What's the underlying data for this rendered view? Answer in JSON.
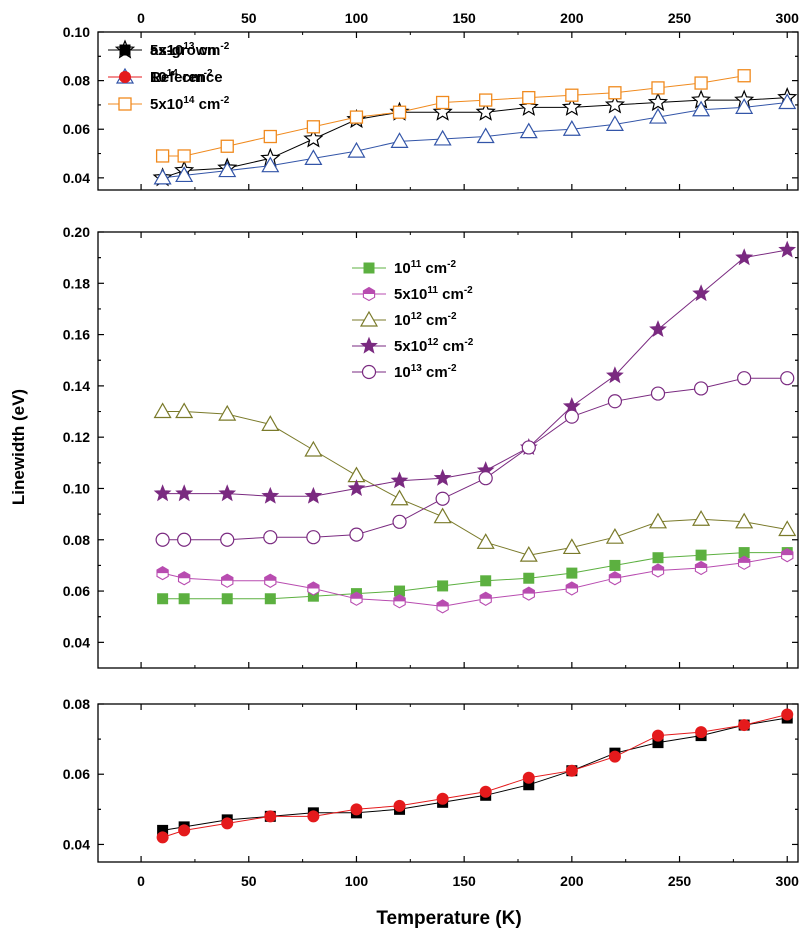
{
  "figure": {
    "xlabel": "Temperature (K)",
    "ylabel": "Linewidth (eV)"
  },
  "colors": {
    "black": "#000000",
    "blue": "#3355a8",
    "orange": "#f08a1e",
    "green": "#5cb040",
    "magenta": "#b84cb0",
    "olive": "#7a7a2a",
    "purple": "#7a2a80",
    "red": "#e41a1c"
  },
  "chart_data": [
    {
      "type": "line",
      "panel": "top",
      "xlim": [
        -20,
        305
      ],
      "ylim": [
        0.035,
        0.1
      ],
      "xticks": [
        0,
        50,
        100,
        150,
        200,
        250,
        300
      ],
      "yticks": [
        0.04,
        0.06,
        0.08,
        0.1
      ],
      "ytick_labels": [
        "0.04",
        "0.06",
        "0.08",
        "0.10"
      ],
      "show_xtick_labels": "top",
      "legend_position": "top-left",
      "series": [
        {
          "name": "5x10^13 cm^-2",
          "label_parts": [
            "5x10",
            "13",
            " cm",
            "-2"
          ],
          "marker": "star-open",
          "color": "black",
          "x": [
            10,
            20,
            40,
            60,
            80,
            100,
            120,
            140,
            160,
            180,
            200,
            220,
            240,
            260,
            280,
            300
          ],
          "y": [
            0.04,
            0.043,
            0.044,
            0.048,
            0.056,
            0.064,
            0.067,
            0.067,
            0.067,
            0.069,
            0.069,
            0.07,
            0.071,
            0.072,
            0.072,
            0.073
          ]
        },
        {
          "name": "10^14 cm^-2",
          "label_parts": [
            "10",
            "14",
            " cm",
            "-2"
          ],
          "marker": "triangle-open",
          "color": "blue",
          "x": [
            10,
            20,
            40,
            60,
            80,
            100,
            120,
            140,
            160,
            180,
            200,
            220,
            240,
            260,
            280,
            300
          ],
          "y": [
            0.04,
            0.041,
            0.043,
            0.045,
            0.048,
            0.051,
            0.055,
            0.056,
            0.057,
            0.059,
            0.06,
            0.062,
            0.065,
            0.068,
            0.069,
            0.071
          ]
        },
        {
          "name": "5x10^14 cm^-2",
          "label_parts": [
            "5x10",
            "14",
            " cm",
            "-2"
          ],
          "marker": "square-open",
          "color": "orange",
          "x": [
            10,
            20,
            40,
            60,
            80,
            100,
            120,
            140,
            160,
            180,
            200,
            220,
            240,
            260,
            280
          ],
          "y": [
            0.049,
            0.049,
            0.053,
            0.057,
            0.061,
            0.065,
            0.067,
            0.071,
            0.072,
            0.073,
            0.074,
            0.075,
            0.077,
            0.079,
            0.082
          ]
        }
      ]
    },
    {
      "type": "line",
      "panel": "middle",
      "xlim": [
        -20,
        305
      ],
      "ylim": [
        0.03,
        0.2
      ],
      "xticks": [
        0,
        50,
        100,
        150,
        200,
        250,
        300
      ],
      "yticks": [
        0.04,
        0.06,
        0.08,
        0.1,
        0.12,
        0.14,
        0.16,
        0.18,
        0.2
      ],
      "ytick_labels": [
        "0.04",
        "0.06",
        "0.08",
        "0.10",
        "0.12",
        "0.14",
        "0.16",
        "0.18",
        "0.20"
      ],
      "show_xtick_labels": "none",
      "legend_position": "top-center",
      "series": [
        {
          "name": "10^11 cm^-2",
          "label_parts": [
            "10",
            "11",
            " cm",
            "-2"
          ],
          "marker": "square-filled",
          "color": "green",
          "x": [
            10,
            20,
            40,
            60,
            80,
            100,
            120,
            140,
            160,
            180,
            200,
            220,
            240,
            260,
            280,
            300
          ],
          "y": [
            0.057,
            0.057,
            0.057,
            0.057,
            0.058,
            0.059,
            0.06,
            0.062,
            0.064,
            0.065,
            0.067,
            0.07,
            0.073,
            0.074,
            0.075,
            0.075
          ]
        },
        {
          "name": "5x10^11 cm^-2",
          "label_parts": [
            "5x10",
            "11",
            " cm",
            "-2"
          ],
          "marker": "hexagon-half",
          "color": "magenta",
          "x": [
            10,
            20,
            40,
            60,
            80,
            100,
            120,
            140,
            160,
            180,
            200,
            220,
            240,
            260,
            280,
            300
          ],
          "y": [
            0.067,
            0.065,
            0.064,
            0.064,
            0.061,
            0.057,
            0.056,
            0.054,
            0.057,
            0.059,
            0.061,
            0.065,
            0.068,
            0.069,
            0.071,
            0.074
          ]
        },
        {
          "name": "10^12 cm^-2",
          "label_parts": [
            "10",
            "12",
            " cm",
            "-2"
          ],
          "marker": "triangle-open",
          "color": "olive",
          "x": [
            10,
            20,
            40,
            60,
            80,
            100,
            120,
            140,
            160,
            180,
            200,
            220,
            240,
            260,
            280,
            300
          ],
          "y": [
            0.13,
            0.13,
            0.129,
            0.125,
            0.115,
            0.105,
            0.096,
            0.089,
            0.079,
            0.074,
            0.077,
            0.081,
            0.087,
            0.088,
            0.087,
            0.084
          ]
        },
        {
          "name": "5x10^12 cm^-2",
          "label_parts": [
            "5x10",
            "12",
            " cm",
            "-2"
          ],
          "marker": "star-filled",
          "color": "purple",
          "x": [
            10,
            20,
            40,
            60,
            80,
            100,
            120,
            140,
            160,
            180,
            200,
            220,
            240,
            260,
            280,
            300
          ],
          "y": [
            0.098,
            0.098,
            0.098,
            0.097,
            0.097,
            0.1,
            0.103,
            0.104,
            0.107,
            0.116,
            0.132,
            0.144,
            0.162,
            0.176,
            0.19,
            0.193
          ]
        },
        {
          "name": "10^13 cm^-2",
          "label_parts": [
            "10",
            "13",
            " cm",
            "-2"
          ],
          "marker": "circle-open",
          "color": "purple",
          "x": [
            10,
            20,
            40,
            60,
            80,
            100,
            120,
            140,
            160,
            180,
            200,
            220,
            240,
            260,
            280,
            300
          ],
          "y": [
            0.08,
            0.08,
            0.08,
            0.081,
            0.081,
            0.082,
            0.087,
            0.096,
            0.104,
            0.116,
            0.128,
            0.134,
            0.137,
            0.139,
            0.143,
            0.143
          ]
        }
      ]
    },
    {
      "type": "line",
      "panel": "bottom",
      "xlim": [
        -20,
        305
      ],
      "ylim": [
        0.035,
        0.08
      ],
      "xticks": [
        0,
        50,
        100,
        150,
        200,
        250,
        300
      ],
      "yticks": [
        0.04,
        0.06,
        0.08
      ],
      "ytick_labels": [
        "0.04",
        "0.06",
        "0.08"
      ],
      "show_xtick_labels": "bottom",
      "legend_position": "top-left",
      "series": [
        {
          "name": "as-grown",
          "label_parts": [
            "as-grown",
            "",
            "",
            ""
          ],
          "marker": "square-filled",
          "color": "black",
          "x": [
            10,
            20,
            40,
            60,
            80,
            100,
            120,
            140,
            160,
            180,
            200,
            220,
            240,
            260,
            280,
            300
          ],
          "y": [
            0.044,
            0.045,
            0.047,
            0.048,
            0.049,
            0.049,
            0.05,
            0.052,
            0.054,
            0.057,
            0.061,
            0.066,
            0.069,
            0.071,
            0.074,
            0.076
          ]
        },
        {
          "name": "Reference",
          "label_parts": [
            "Reference",
            "",
            "",
            ""
          ],
          "marker": "circle-filled",
          "color": "red",
          "x": [
            10,
            20,
            40,
            60,
            80,
            100,
            120,
            140,
            160,
            180,
            200,
            220,
            240,
            260,
            280,
            300
          ],
          "y": [
            0.042,
            0.044,
            0.046,
            0.048,
            0.048,
            0.05,
            0.051,
            0.053,
            0.055,
            0.059,
            0.061,
            0.065,
            0.071,
            0.072,
            0.074,
            0.077
          ]
        }
      ]
    }
  ]
}
